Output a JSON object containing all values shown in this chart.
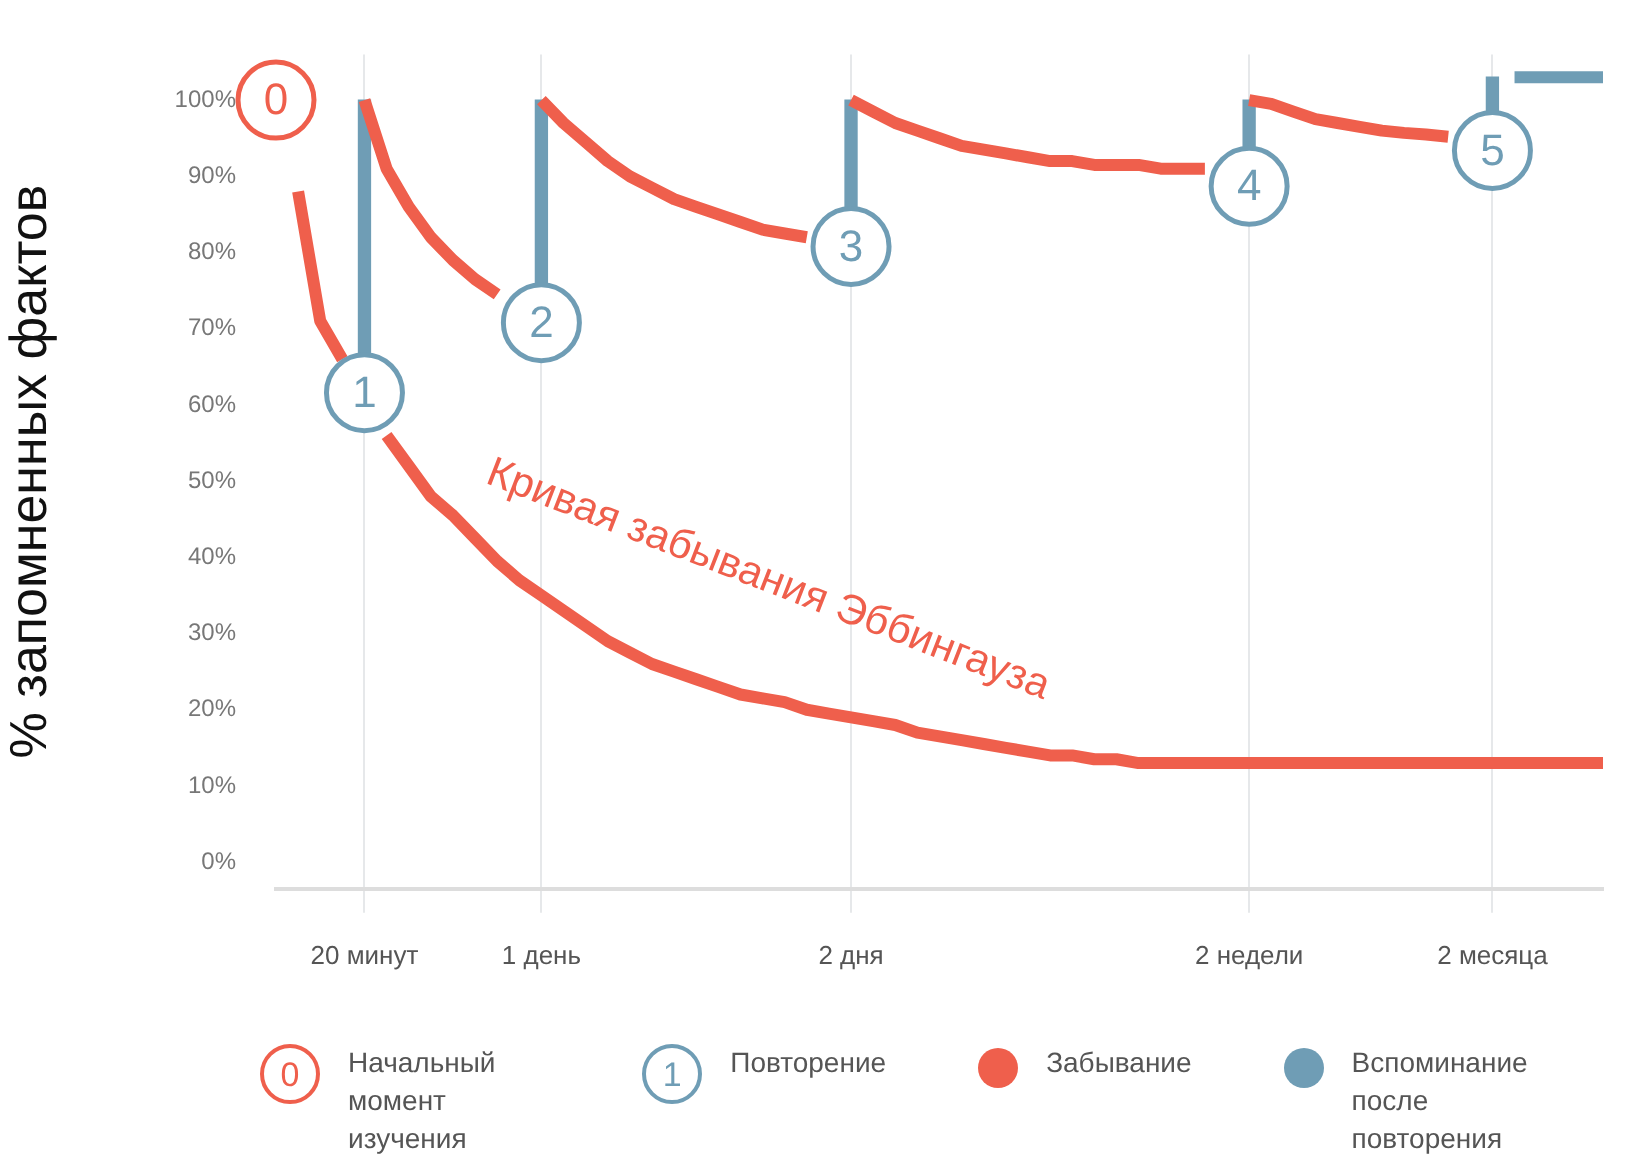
{
  "chart_data": {
    "type": "line",
    "ylabel": "% запомненных фактов",
    "categories": [
      null,
      null,
      null,
      null,
      "20 минут",
      null,
      null,
      null,
      null,
      null,
      null,
      null,
      "1 день",
      null,
      null,
      null,
      null,
      null,
      null,
      null,
      null,
      null,
      null,
      null,
      null,
      null,
      "2 дня",
      null,
      null,
      null,
      null,
      null,
      null,
      null,
      null,
      null,
      null,
      null,
      null,
      null,
      null,
      null,
      null,
      null,
      "2 недели",
      null,
      null,
      null,
      null,
      null,
      null,
      null,
      null,
      null,
      null,
      "2 месяца",
      null,
      null,
      null,
      null,
      null
    ],
    "ylim": [
      -3.5,
      106
    ],
    "yticks": [
      {
        "value": 0,
        "label": "0%"
      },
      {
        "value": 10,
        "label": "10%"
      },
      {
        "value": 20,
        "label": "20%"
      },
      {
        "value": 30,
        "label": "30%"
      },
      {
        "value": 40,
        "label": "40%"
      },
      {
        "value": 50,
        "label": "50%"
      },
      {
        "value": 60,
        "label": "60%"
      },
      {
        "value": 70,
        "label": "70%"
      },
      {
        "value": 80,
        "label": "80%"
      },
      {
        "value": 90,
        "label": "90%"
      },
      {
        "value": 100,
        "label": "100%"
      }
    ],
    "grid": "x",
    "legend": "bottom",
    "line_style": "solid",
    "annotations": [
      "Кривая забывания Эббингауза",
      {
        "text": "0",
        "y": 100
      },
      {
        "text": "1",
        "x": "20 минут",
        "y": 61.6
      },
      {
        "text": "2",
        "x": "1 день",
        "y": 70.8
      },
      {
        "text": "3",
        "x": "2 дня",
        "y": 80.8
      },
      {
        "text": "4",
        "x": "2 недели",
        "y": 88.7
      },
      {
        "text": "5",
        "x": "2 месяца",
        "y": 93.4
      }
    ],
    "series": [
      {
        "name": "Забывание",
        "color": "#ef5f4c",
        "values": [
          null,
          88,
          71,
          66,
          null,
          56,
          52,
          48,
          45.5,
          42.5,
          39.5,
          37,
          35,
          33,
          31,
          29,
          27.5,
          26,
          25,
          24,
          23,
          22,
          21.5,
          21,
          20,
          19.5,
          19,
          18.5,
          18,
          17,
          16.5,
          16,
          15.5,
          15,
          14.5,
          14,
          14,
          13.5,
          13.5,
          13,
          13,
          13,
          13,
          13,
          13,
          13,
          13,
          13,
          13,
          13,
          13,
          13,
          13,
          13,
          13,
          13,
          13,
          13,
          13,
          13,
          13
        ]
      },
      {
        "color": "#ef5f4c",
        "values": [
          null,
          null,
          null,
          null,
          100,
          91,
          86,
          82,
          79,
          76.5,
          74.5,
          null,
          null,
          null,
          null,
          null,
          null,
          null,
          null,
          null,
          null,
          null,
          null,
          null,
          null,
          null,
          null,
          null,
          null,
          null,
          null,
          null,
          null,
          null,
          null,
          null,
          null,
          null,
          null,
          null,
          null,
          null,
          null,
          null,
          null,
          null,
          null,
          null,
          null,
          null,
          null,
          null,
          null,
          null,
          null,
          null,
          null,
          null,
          null,
          null,
          null
        ]
      },
      {
        "color": "#ef5f4c",
        "values": [
          null,
          null,
          null,
          null,
          null,
          null,
          null,
          null,
          null,
          null,
          null,
          null,
          100,
          97,
          94.5,
          92,
          90,
          88.5,
          87,
          86,
          85,
          84,
          83,
          82.5,
          82,
          null,
          null,
          null,
          null,
          null,
          null,
          null,
          null,
          null,
          null,
          null,
          null,
          null,
          null,
          null,
          null,
          null,
          null,
          null,
          null,
          null,
          null,
          null,
          null,
          null,
          null,
          null,
          null,
          null,
          null,
          null,
          null,
          null,
          null,
          null,
          null
        ]
      },
      {
        "color": "#ef5f4c",
        "values": [
          null,
          null,
          null,
          null,
          null,
          null,
          null,
          null,
          null,
          null,
          null,
          null,
          null,
          null,
          null,
          null,
          null,
          null,
          null,
          null,
          null,
          null,
          null,
          null,
          null,
          null,
          100,
          98.5,
          97,
          96,
          95,
          94,
          93.5,
          93,
          92.5,
          92,
          92,
          91.5,
          91.5,
          91.5,
          91,
          91,
          91,
          null,
          null,
          null,
          null,
          null,
          null,
          null,
          null,
          null,
          null,
          null,
          null,
          null,
          null,
          null,
          null,
          null,
          null
        ]
      },
      {
        "color": "#ef5f4c",
        "values": [
          null,
          null,
          null,
          null,
          null,
          null,
          null,
          null,
          null,
          null,
          null,
          null,
          null,
          null,
          null,
          null,
          null,
          null,
          null,
          null,
          null,
          null,
          null,
          null,
          null,
          null,
          null,
          null,
          null,
          null,
          null,
          null,
          null,
          null,
          null,
          null,
          null,
          null,
          null,
          null,
          null,
          null,
          null,
          null,
          100,
          99.5,
          98.5,
          97.5,
          97,
          96.5,
          96,
          95.7,
          95.5,
          95.2,
          null,
          null,
          null,
          null,
          null,
          null,
          null
        ]
      },
      {
        "name": "Вспоминание после повторения",
        "type": "bar",
        "color": "#6f9db5",
        "base": [
          null,
          null,
          null,
          null,
          61.6,
          null,
          null,
          null,
          null,
          null,
          null,
          null,
          70.8,
          null,
          null,
          null,
          null,
          null,
          null,
          null,
          null,
          null,
          null,
          null,
          null,
          null,
          80.8,
          null,
          null,
          null,
          null,
          null,
          null,
          null,
          null,
          null,
          null,
          null,
          null,
          null,
          null,
          null,
          null,
          null,
          88.7,
          null,
          null,
          null,
          null,
          null,
          null,
          null,
          null,
          null,
          null,
          93.4,
          null,
          null,
          null,
          null,
          null
        ],
        "values": [
          null,
          null,
          null,
          null,
          38.4,
          null,
          null,
          null,
          null,
          null,
          null,
          null,
          29.2,
          null,
          null,
          null,
          null,
          null,
          null,
          null,
          null,
          null,
          null,
          null,
          null,
          null,
          19.2,
          null,
          null,
          null,
          null,
          null,
          null,
          null,
          null,
          null,
          null,
          null,
          null,
          null,
          null,
          null,
          null,
          null,
          11.3,
          null,
          null,
          null,
          null,
          null,
          null,
          null,
          null,
          null,
          null,
          9.6,
          null,
          null,
          null,
          null,
          null
        ]
      },
      {
        "color": "#6f9db5",
        "values": [
          null,
          null,
          null,
          null,
          null,
          null,
          null,
          null,
          null,
          null,
          null,
          null,
          null,
          null,
          null,
          null,
          null,
          null,
          null,
          null,
          null,
          null,
          null,
          null,
          null,
          null,
          null,
          null,
          null,
          null,
          null,
          null,
          null,
          null,
          null,
          null,
          null,
          null,
          null,
          null,
          null,
          null,
          null,
          null,
          null,
          null,
          null,
          null,
          null,
          null,
          null,
          null,
          null,
          null,
          null,
          null,
          103,
          103,
          103,
          103,
          103
        ]
      },
      {
        "name": "Начальный момент изучения",
        "type": "scatter",
        "marker": "circle",
        "color": "#ef5f4c",
        "values": [
          100,
          null,
          null,
          null,
          null,
          null,
          null,
          null,
          null,
          null,
          null,
          null,
          null,
          null,
          null,
          null,
          null,
          null,
          null,
          null,
          null,
          null,
          null,
          null,
          null,
          null,
          null,
          null,
          null,
          null,
          null,
          null,
          null,
          null,
          null,
          null,
          null,
          null,
          null,
          null,
          null,
          null,
          null,
          null,
          null,
          null,
          null,
          null,
          null,
          null,
          null,
          null,
          null,
          null,
          null,
          null,
          null,
          null,
          null,
          null,
          null
        ]
      },
      {
        "name": "Повторение",
        "type": "scatter",
        "marker": "circle",
        "color": "#6f9db5",
        "values": [
          null,
          null,
          null,
          null,
          61.6,
          null,
          null,
          null,
          null,
          null,
          null,
          null,
          70.8,
          null,
          null,
          null,
          null,
          null,
          null,
          null,
          null,
          null,
          null,
          null,
          null,
          null,
          80.8,
          null,
          null,
          null,
          null,
          null,
          null,
          null,
          null,
          null,
          null,
          null,
          null,
          null,
          null,
          null,
          null,
          null,
          88.7,
          null,
          null,
          null,
          null,
          null,
          null,
          null,
          null,
          null,
          null,
          93.4,
          null,
          null,
          null,
          null,
          null
        ]
      }
    ]
  }
}
